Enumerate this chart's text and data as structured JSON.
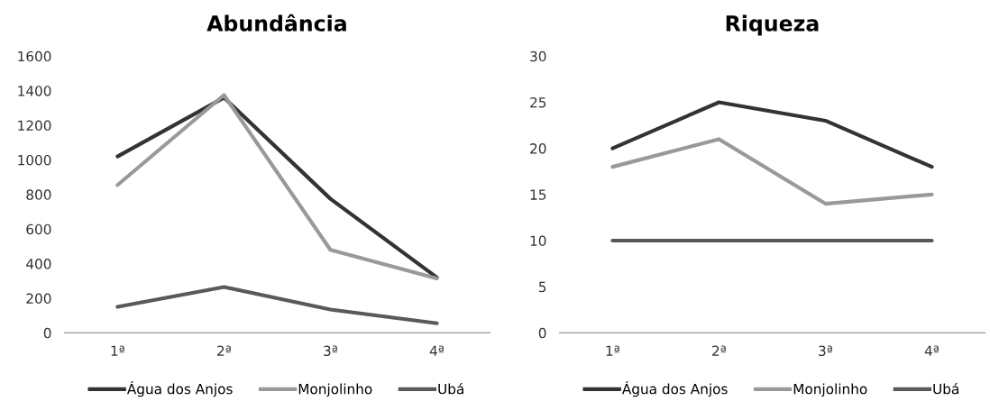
{
  "chart_data": [
    {
      "type": "line",
      "title": "Abundância",
      "categories": [
        "1ª",
        "2ª",
        "3ª",
        "4ª"
      ],
      "ylim": [
        0,
        1600
      ],
      "yticks": [
        0,
        200,
        400,
        600,
        800,
        1000,
        1200,
        1400,
        1600
      ],
      "grid": false,
      "legend": "bottom",
      "marker": "none",
      "line_style": "solid",
      "series": [
        {
          "name": "Água dos Anjos",
          "color": "#333333",
          "values": [
            1020,
            1360,
            775,
            320
          ]
        },
        {
          "name": "Monjolinho",
          "color": "#999999",
          "values": [
            855,
            1375,
            480,
            315
          ]
        },
        {
          "name": "Ubá",
          "color": "#595959",
          "values": [
            150,
            265,
            135,
            55
          ]
        }
      ]
    },
    {
      "type": "line",
      "title": "Riqueza",
      "categories": [
        "1ª",
        "2ª",
        "3ª",
        "4ª"
      ],
      "ylim": [
        0,
        30
      ],
      "yticks": [
        0,
        5,
        10,
        15,
        20,
        25,
        30
      ],
      "grid": false,
      "legend": "bottom",
      "marker": "none",
      "line_style": "solid",
      "series": [
        {
          "name": "Água dos Anjos",
          "color": "#333333",
          "values": [
            20,
            25,
            23,
            18
          ]
        },
        {
          "name": "Monjolinho",
          "color": "#999999",
          "values": [
            18,
            21,
            14,
            15
          ]
        },
        {
          "name": "Ubá",
          "color": "#595959",
          "values": [
            10,
            10,
            10,
            10
          ]
        }
      ]
    }
  ]
}
